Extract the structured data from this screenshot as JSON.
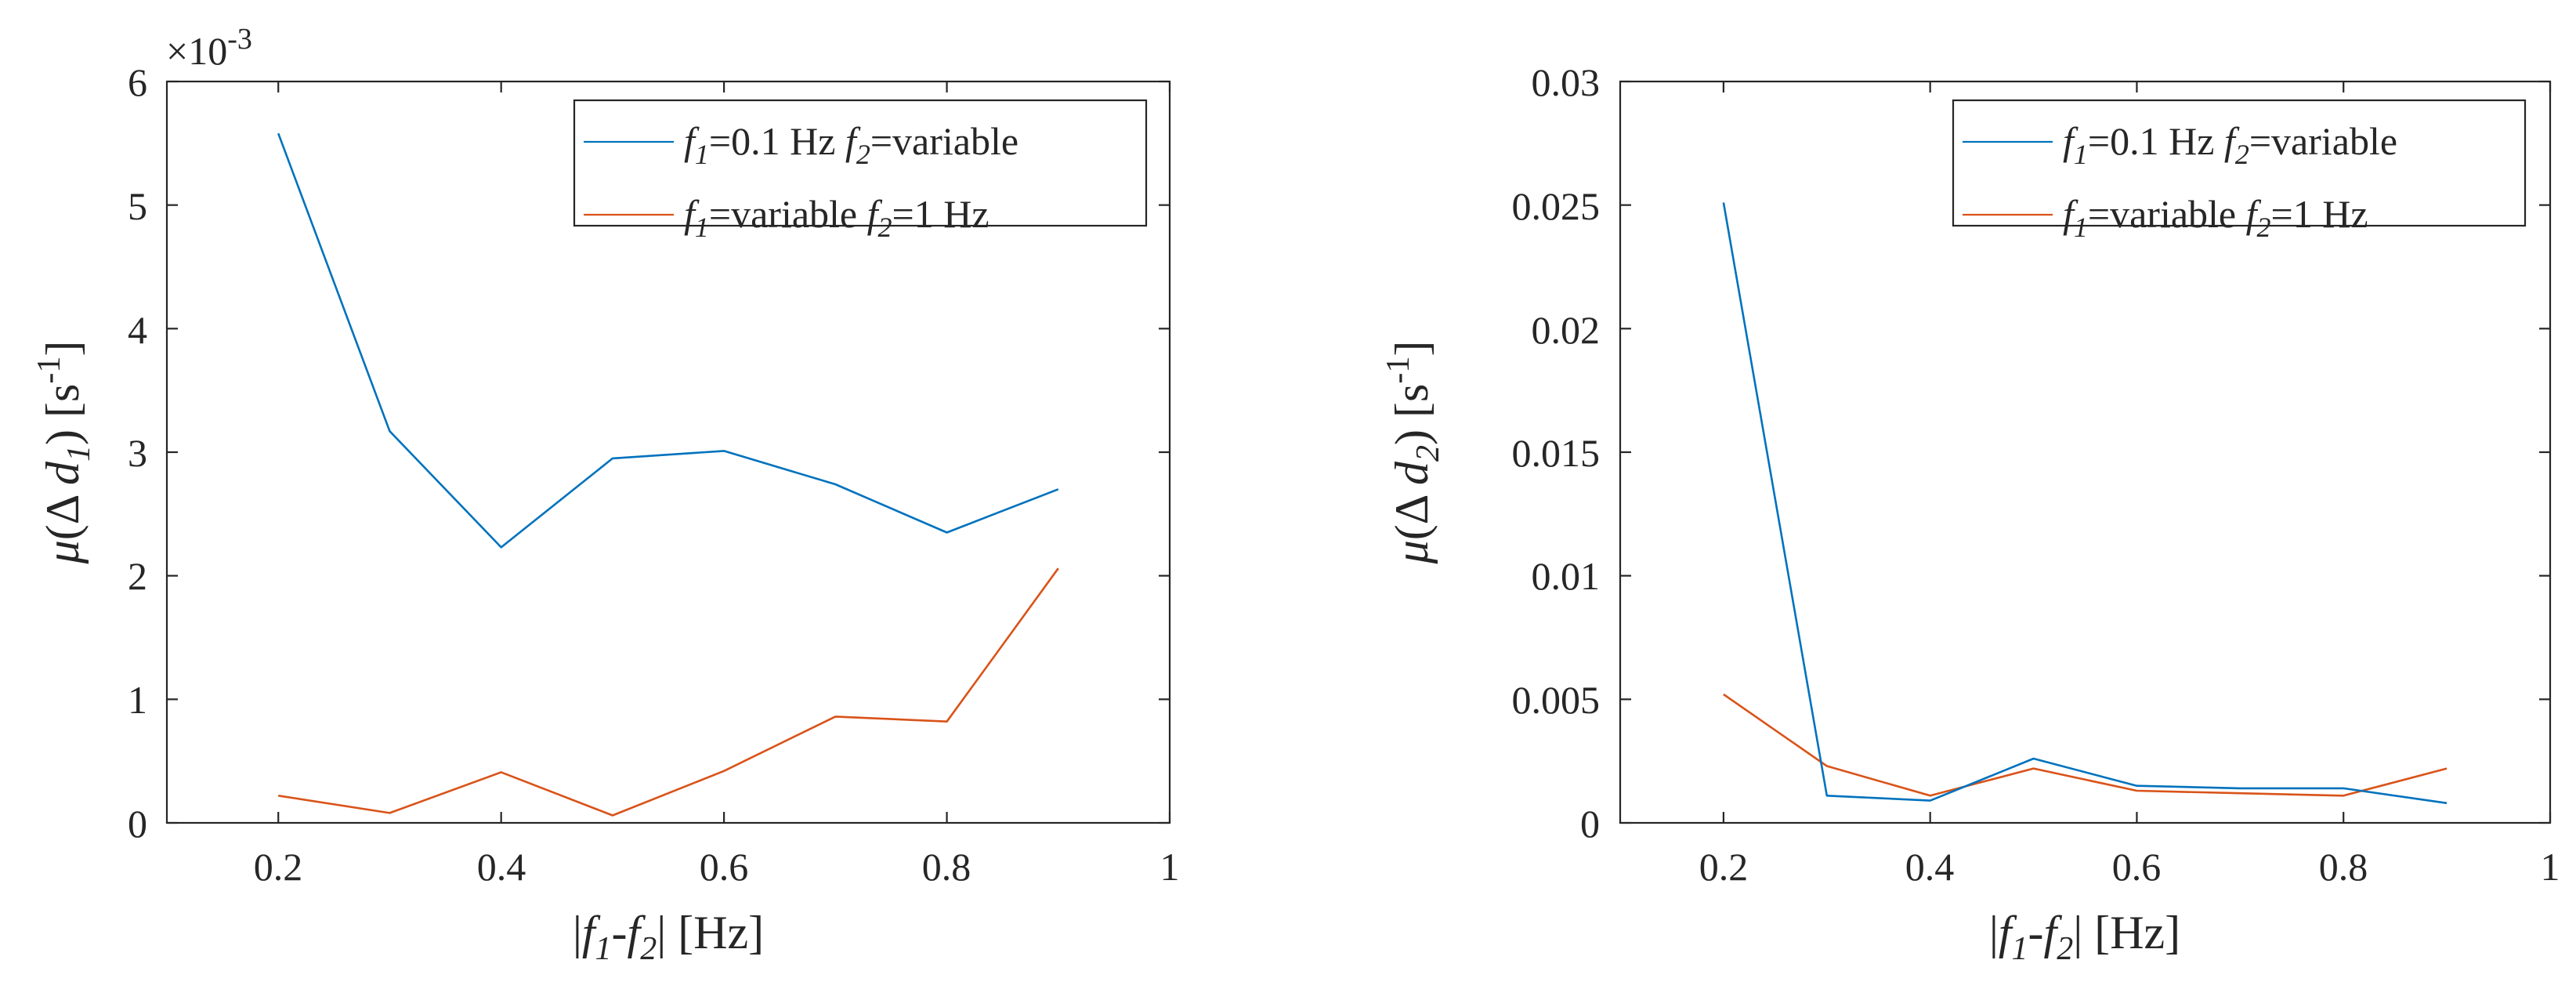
{
  "figure": {
    "panels": [
      "left",
      "right"
    ]
  },
  "chart_data": [
    {
      "type": "line",
      "id": "left",
      "title": "",
      "xlabel": {
        "pre": "|",
        "f1": "f",
        "sub1": "1",
        "mid": "-",
        "f2": "f",
        "sub2": "2",
        "post": "| [Hz]"
      },
      "ylabel": {
        "mu": "μ",
        "open": "(Δ ",
        "d": "d",
        "sub": "1",
        "close": ")",
        "unit": "[s",
        "sup": "-1",
        "unitclose": "]"
      },
      "exponent": {
        "base": "×10",
        "power": "-3"
      },
      "xlim": [
        0.1,
        1.0
      ],
      "ylim": [
        0,
        6
      ],
      "xticks": [
        0.2,
        0.4,
        0.6,
        0.8,
        1.0
      ],
      "xtick_labels": [
        "0.2",
        "0.4",
        "0.6",
        "0.8",
        "1"
      ],
      "yticks": [
        0,
        1,
        2,
        3,
        4,
        5,
        6
      ],
      "ytick_labels": [
        "0",
        "1",
        "2",
        "3",
        "4",
        "5",
        "6"
      ],
      "grid": false,
      "legend_position": "top-right",
      "x": [
        0.2,
        0.3,
        0.4,
        0.5,
        0.6,
        0.7,
        0.8,
        0.9
      ],
      "series": [
        {
          "key": "blue",
          "name": "f1=0.1 Hz f2=variable",
          "label": {
            "f1": "f",
            "s1": "1",
            "t1": "=0.1 Hz ",
            "f2": "f",
            "s2": "2",
            "t2": "=variable"
          },
          "color": "#0072BD",
          "values": [
            5.58,
            3.17,
            2.23,
            2.95,
            3.01,
            2.74,
            2.35,
            2.7
          ]
        },
        {
          "key": "orange",
          "name": "f1=variable f2=1 Hz",
          "label": {
            "f1": "f",
            "s1": "1",
            "t1": "=variable ",
            "f2": "f",
            "s2": "2",
            "t2": "=1 Hz"
          },
          "color": "#D95319",
          "values": [
            0.22,
            0.08,
            0.41,
            0.06,
            0.42,
            0.86,
            0.82,
            2.06
          ]
        }
      ]
    },
    {
      "type": "line",
      "id": "right",
      "title": "",
      "xlabel": {
        "pre": "|",
        "f1": "f",
        "sub1": "1",
        "mid": "-",
        "f2": "f",
        "sub2": "2",
        "post": "| [Hz]"
      },
      "ylabel": {
        "mu": "μ",
        "open": "(Δ ",
        "d": "d",
        "sub": "2",
        "close": ")",
        "unit": "[s",
        "sup": "-1",
        "unitclose": "]"
      },
      "xlim": [
        0.1,
        1.0
      ],
      "ylim": [
        0,
        0.03
      ],
      "xticks": [
        0.2,
        0.4,
        0.6,
        0.8,
        1.0
      ],
      "xtick_labels": [
        "0.2",
        "0.4",
        "0.6",
        "0.8",
        "1"
      ],
      "yticks": [
        0,
        0.005,
        0.01,
        0.015,
        0.02,
        0.025,
        0.03
      ],
      "ytick_labels": [
        "0",
        "0.005",
        "0.01",
        "0.015",
        "0.02",
        "0.025",
        "0.03"
      ],
      "grid": false,
      "legend_position": "top-right",
      "x": [
        0.2,
        0.3,
        0.4,
        0.5,
        0.6,
        0.7,
        0.8,
        0.9
      ],
      "series": [
        {
          "key": "blue",
          "name": "f1=0.1 Hz f2=variable",
          "label": {
            "f1": "f",
            "s1": "1",
            "t1": "=0.1 Hz ",
            "f2": "f",
            "s2": "2",
            "t2": "=variable"
          },
          "color": "#0072BD",
          "values": [
            0.0251,
            0.0011,
            0.0009,
            0.0026,
            0.0015,
            0.0014,
            0.0014,
            0.0008
          ]
        },
        {
          "key": "orange",
          "name": "f1=variable f2=1 Hz",
          "label": {
            "f1": "f",
            "s1": "1",
            "t1": "=variable ",
            "f2": "f",
            "s2": "2",
            "t2": "=1 Hz"
          },
          "color": "#D95319",
          "values": [
            0.0052,
            0.0023,
            0.0011,
            0.0022,
            0.0013,
            0.0012,
            0.0011,
            0.0022
          ]
        }
      ]
    }
  ]
}
